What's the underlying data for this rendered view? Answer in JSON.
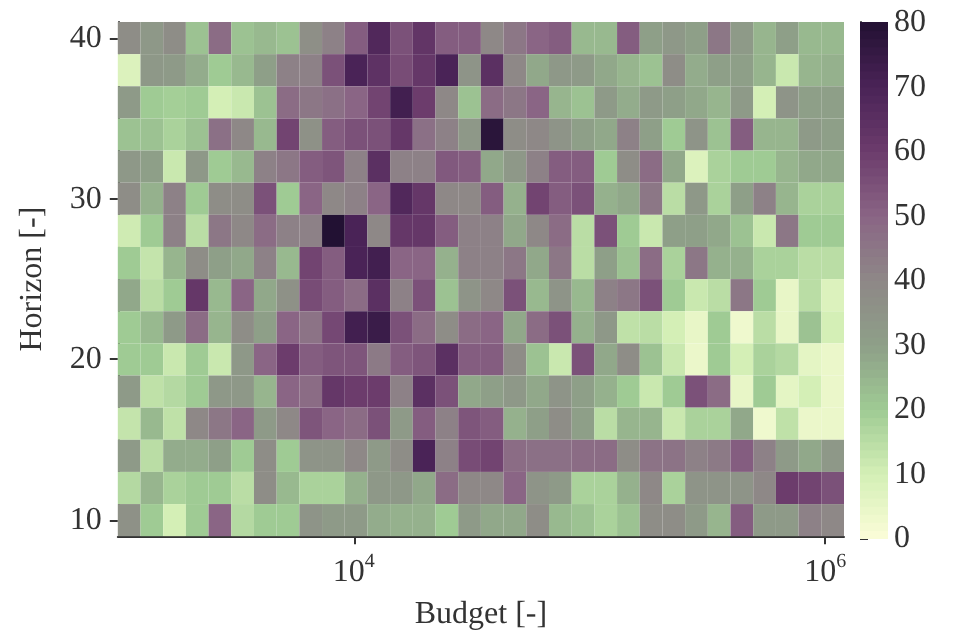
{
  "chart_data": {
    "type": "heatmap",
    "xlabel": "Budget [-]",
    "ylabel": "Horizon [-]",
    "log": "x",
    "xlim": [
      1000,
      1200000
    ],
    "xticks": [
      {
        "value": 10000,
        "label": "10$^{4}$"
      },
      {
        "value": 1000000,
        "label": "10$^{6}$"
      }
    ],
    "ylim": [
      9,
      41
    ],
    "yticks": [
      10,
      20,
      30,
      40
    ],
    "clim": [
      0,
      80
    ],
    "cticks": [
      0,
      10,
      20,
      30,
      40,
      50,
      60,
      70,
      80
    ],
    "grid": false,
    "cells": [
      [
        38,
        33,
        38,
        22,
        48,
        22,
        24,
        22,
        37,
        42,
        52,
        68,
        55,
        63,
        52,
        52,
        40,
        45,
        50,
        52,
        24,
        24,
        52,
        30,
        33,
        30,
        45,
        32,
        25,
        30,
        24,
        24
      ],
      [
        8,
        33,
        32,
        27,
        20,
        24,
        30,
        42,
        42,
        55,
        70,
        64,
        56,
        62,
        70,
        35,
        65,
        40,
        28,
        33,
        32,
        28,
        25,
        22,
        38,
        27,
        30,
        30,
        25,
        12,
        25,
        26
      ],
      [
        32,
        20,
        19,
        20,
        10,
        12,
        22,
        48,
        45,
        47,
        50,
        58,
        72,
        60,
        40,
        22,
        48,
        45,
        50,
        25,
        22,
        32,
        27,
        32,
        30,
        28,
        25,
        32,
        10,
        35,
        30,
        30
      ],
      [
        22,
        22,
        18,
        22,
        47,
        40,
        24,
        58,
        36,
        52,
        55,
        55,
        62,
        47,
        42,
        33,
        78,
        38,
        40,
        35,
        30,
        28,
        42,
        30,
        20,
        35,
        22,
        52,
        25,
        25,
        32,
        30
      ],
      [
        33,
        30,
        12,
        33,
        20,
        24,
        42,
        45,
        52,
        54,
        42,
        65,
        42,
        42,
        53,
        52,
        28,
        33,
        42,
        52,
        52,
        20,
        38,
        48,
        28,
        8,
        18,
        20,
        20,
        25,
        28,
        28
      ],
      [
        38,
        26,
        42,
        20,
        38,
        38,
        55,
        20,
        50,
        40,
        42,
        50,
        68,
        62,
        40,
        40,
        52,
        26,
        58,
        52,
        55,
        26,
        28,
        45,
        15,
        33,
        18,
        30,
        42,
        25,
        18,
        18
      ],
      [
        11,
        20,
        42,
        15,
        45,
        40,
        48,
        42,
        42,
        80,
        70,
        40,
        62,
        62,
        52,
        42,
        42,
        28,
        40,
        48,
        15,
        55,
        20,
        12,
        30,
        30,
        28,
        22,
        12,
        45,
        20,
        20
      ],
      [
        20,
        13,
        25,
        38,
        30,
        28,
        42,
        24,
        58,
        52,
        70,
        72,
        50,
        50,
        26,
        42,
        42,
        45,
        28,
        45,
        15,
        30,
        22,
        48,
        18,
        45,
        26,
        26,
        18,
        18,
        15,
        15
      ],
      [
        28,
        15,
        20,
        62,
        24,
        50,
        28,
        36,
        56,
        52,
        48,
        65,
        42,
        55,
        22,
        35,
        40,
        55,
        24,
        35,
        24,
        42,
        45,
        55,
        20,
        12,
        15,
        45,
        20,
        5,
        15,
        8
      ],
      [
        20,
        24,
        32,
        48,
        25,
        38,
        30,
        50,
        46,
        57,
        72,
        74,
        55,
        48,
        38,
        48,
        50,
        28,
        48,
        55,
        26,
        33,
        14,
        15,
        10,
        5,
        20,
        3,
        15,
        5,
        22,
        10
      ],
      [
        20,
        20,
        12,
        20,
        12,
        33,
        50,
        60,
        52,
        54,
        54,
        44,
        52,
        54,
        65,
        52,
        52,
        38,
        22,
        12,
        55,
        28,
        38,
        22,
        12,
        4,
        20,
        10,
        18,
        16,
        6,
        4
      ],
      [
        32,
        14,
        16,
        20,
        33,
        33,
        25,
        50,
        48,
        62,
        60,
        60,
        42,
        65,
        55,
        28,
        30,
        33,
        28,
        35,
        30,
        26,
        20,
        12,
        20,
        55,
        48,
        5,
        20,
        6,
        10,
        4
      ],
      [
        13,
        24,
        14,
        40,
        45,
        50,
        32,
        40,
        54,
        50,
        48,
        55,
        32,
        52,
        42,
        54,
        52,
        26,
        30,
        38,
        30,
        15,
        25,
        25,
        12,
        18,
        18,
        28,
        3,
        14,
        4,
        4
      ],
      [
        32,
        15,
        27,
        27,
        30,
        20,
        38,
        20,
        35,
        35,
        40,
        32,
        38,
        70,
        42,
        56,
        58,
        48,
        47,
        47,
        48,
        48,
        38,
        46,
        46,
        42,
        44,
        52,
        42,
        32,
        28,
        33
      ],
      [
        16,
        25,
        18,
        20,
        20,
        15,
        38,
        24,
        18,
        18,
        26,
        33,
        33,
        28,
        48,
        40,
        40,
        50,
        35,
        32,
        18,
        18,
        26,
        40,
        18,
        35,
        35,
        35,
        40,
        60,
        58,
        55
      ],
      [
        36,
        20,
        10,
        20,
        50,
        16,
        20,
        20,
        35,
        32,
        32,
        27,
        26,
        26,
        20,
        32,
        28,
        28,
        38,
        24,
        22,
        18,
        22,
        38,
        38,
        32,
        25,
        52,
        32,
        32,
        42,
        40
      ]
    ]
  }
}
